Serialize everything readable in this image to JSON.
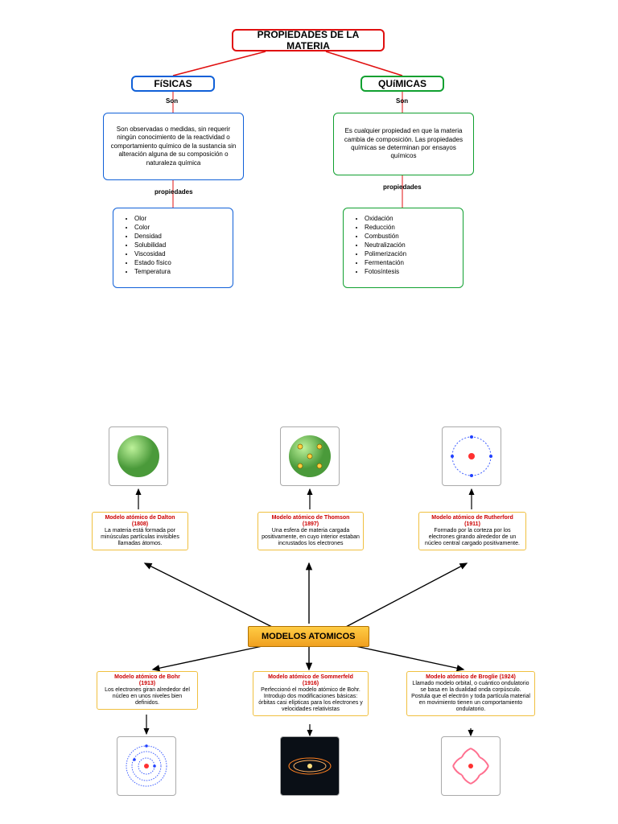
{
  "top": {
    "title": "PROPIEDADES DE LA MATERIA",
    "title_border": "#e01010",
    "left": {
      "header": "FíSICAS",
      "border": "#1060d8",
      "son": "Son",
      "desc": "Son observadas o medidas, sin requerir ningún conocimiento de la reactividad o comportamiento químico de la sustancia sin alteración alguna de su composición o naturaleza química",
      "propiedades": "propiedades",
      "items": [
        "Olor",
        "Color",
        "Densidad",
        "Solubilidad",
        "Viscosidad",
        "Estado físico",
        "Temperatura"
      ]
    },
    "right": {
      "header": "QUíMICAS",
      "border": "#10a030",
      "son": "Son",
      "desc": "Es cualquier propiedad en que la materia cambia de composición. Las propiedades químicas se determinan por ensayos químicos",
      "propiedades": "propiedades",
      "items": [
        "Oxidación",
        "Reducción",
        "Combustión",
        "Neutralización",
        "Polimerización",
        "Fermentación",
        "Fotosíntesis"
      ]
    }
  },
  "bottom": {
    "center": "MODELOS ATOMICOS",
    "models": {
      "dalton": {
        "title": "Modelo atómico de Dalton",
        "year": "(1808)",
        "text": "La materia está formada por minúsculas partículas invisibles llamadas átomos.",
        "border": "#f0c040"
      },
      "thomson": {
        "title": "Modelo atómico de Thomson",
        "year": "(1897)",
        "text": "Una esfera de materia cargada positivamente, en cuyo interior estaban incrustados los electrones",
        "border": "#f0c040"
      },
      "rutherford": {
        "title": "Modelo atómico de Rutherford",
        "year": "(1911)",
        "text": "Formado por la corteza por los electrones girando alrededor de un núcleo central cargado positivamente.",
        "border": "#f0c040"
      },
      "bohr": {
        "title": "Modelo atómico de Bohr",
        "year": "(1913)",
        "text": "Los electrones giran alrededor del núcleo en unos niveles bien definidos.",
        "border": "#f0c040"
      },
      "sommerfeld": {
        "title": "Modelo atómico de Sommerfeld",
        "year": "(1916)",
        "text": "Perfeccionó el modelo atómico de Bohr. Introdujo dos modificaciones básicas: órbitas casi elípticas para los electrones y velocidades relativistas",
        "border": "#f0c040"
      },
      "broglie": {
        "title": "Modelo atómico de Broglie (1924)",
        "year": "",
        "text": "Llamado modelo orbital, o cuántico ondulatorio se basa en la dualidad onda corpúsculo. Postula que el electrón y toda partícula material en movimiento tienen un comportamiento ondulatorio.",
        "border": "#f0c040"
      }
    },
    "colors": {
      "green": "#6abf4b",
      "dark": "#0a0f16",
      "blue": "#88b0ff",
      "border": "#999"
    }
  }
}
